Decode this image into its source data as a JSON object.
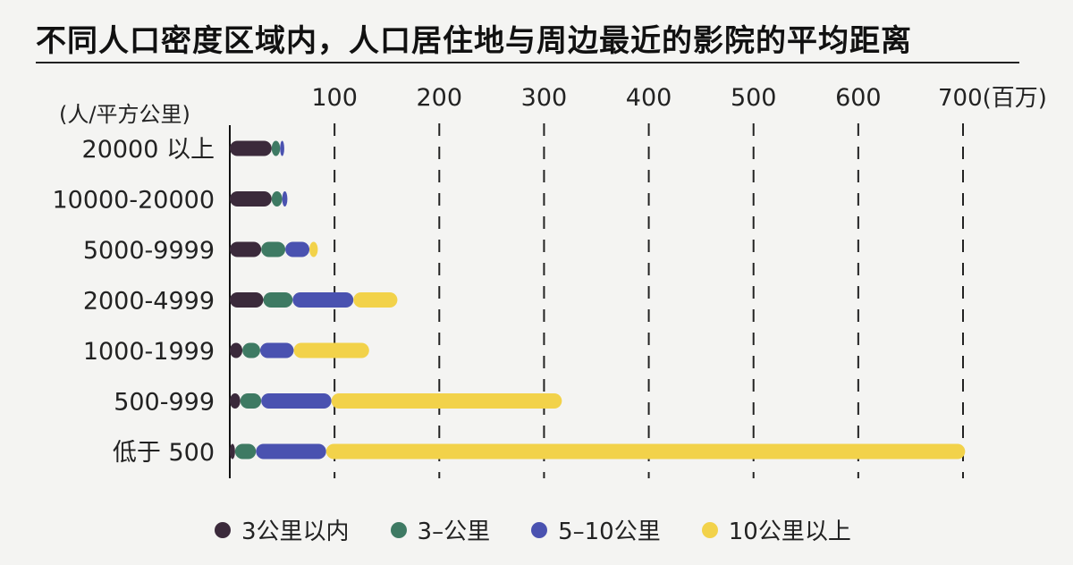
{
  "chart_data": {
    "type": "bar",
    "orientation": "horizontal",
    "stacked": true,
    "title": "不同人口密度区域内，人口居住地与周边最近的影院的平均距离",
    "ylabel": "(人/平方公里)",
    "x_unit_label": "700(百万)",
    "xlim": [
      0,
      700
    ],
    "x_ticks": [
      "100",
      "200",
      "300",
      "400",
      "500",
      "600"
    ],
    "categories": [
      "20000 以上",
      "10000-20000",
      "5000-9999",
      "2000-4999",
      "1000-1999",
      "500-999",
      "低于 500"
    ],
    "series": [
      {
        "name": "3公里以内",
        "color": "#3b2a3b",
        "values": [
          40,
          40,
          30,
          32,
          12,
          10,
          5
        ]
      },
      {
        "name": "3–公里",
        "color": "#3e7a63",
        "values": [
          8,
          10,
          23,
          28,
          17,
          20,
          20
        ]
      },
      {
        "name": "5–10公里",
        "color": "#4a52b0",
        "values": [
          4,
          5,
          23,
          58,
          32,
          67,
          67
        ]
      },
      {
        "name": "10公里以上",
        "color": "#f2d24a",
        "values": [
          0,
          0,
          8,
          42,
          72,
          220,
          610
        ]
      }
    ],
    "grid": "vertical dashed",
    "legend_position": "bottom"
  }
}
